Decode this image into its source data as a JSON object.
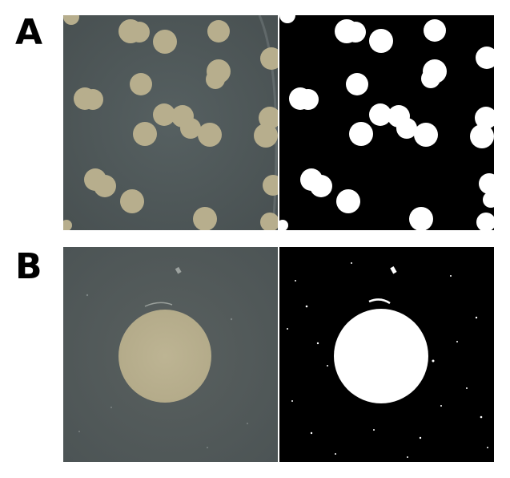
{
  "panel_labels": {
    "a": "A",
    "b": "B"
  },
  "colors": {
    "plate_background": "#4f5758",
    "colony_fill": "#b9b08f",
    "mask_background": "#000000",
    "mask_foreground": "#ffffff"
  }
}
